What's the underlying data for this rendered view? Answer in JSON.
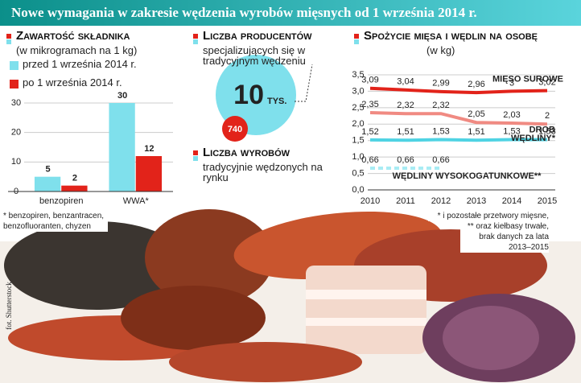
{
  "title": "Nowe wymagania w zakresie wędzenia wyrobów mięsnych od 1 września 2014 r.",
  "chart_data": [
    {
      "type": "bar",
      "title": "Zawartość składnika",
      "subtitle": "(w mikrogramach na 1 kg)",
      "categories": [
        "benzopiren",
        "WWA*"
      ],
      "series": [
        {
          "name": "przed 1 września 2014 r.",
          "color": "#7fe0ec",
          "values": [
            5,
            30
          ]
        },
        {
          "name": "po 1 września 2014 r.",
          "color": "#e2231a",
          "values": [
            2,
            12
          ]
        }
      ],
      "ylim": [
        0,
        30
      ],
      "yticks": [
        0,
        10,
        20,
        30
      ],
      "grid": true,
      "footnote": "* benzopiren, benzantracen, benzofluoranten, chyzen"
    },
    {
      "type": "line",
      "title": "Spożycie mięsa i wędlin na osobę",
      "subtitle": "(w kg)",
      "categories": [
        "2010",
        "2011",
        "2012",
        "2013",
        "2014",
        "2015"
      ],
      "series": [
        {
          "name": "MIĘSO SUROWE",
          "color": "#e2231a",
          "values": [
            3.09,
            3.04,
            2.99,
            2.96,
            3,
            3.02
          ],
          "value_labels": [
            "3,09",
            "3,04",
            "2,99",
            "2,96",
            "3",
            "3,02"
          ]
        },
        {
          "name": "DRÓB",
          "color": "#4fd3e3",
          "values": [
            1.52,
            1.51,
            1.53,
            1.51,
            1.53,
            1.53
          ],
          "value_labels": [
            "1,52",
            "1,51",
            "1,53",
            "1,51",
            "1,53",
            "1,53"
          ]
        },
        {
          "name": "WĘDLINY*",
          "color": "#f08a82",
          "values": [
            2.35,
            2.32,
            2.32,
            2.05,
            2.03,
            2
          ],
          "value_labels": [
            "2,35",
            "2,32",
            "2,32",
            "2,05",
            "2,03",
            "2"
          ]
        },
        {
          "name": "WĘDLINY WYSOKOGATUNKOWE**",
          "color": "#a8ecf4",
          "dashed": true,
          "values": [
            0.66,
            0.66,
            0.66,
            null,
            null,
            null
          ],
          "value_labels": [
            "0,66",
            "0,66",
            "0,66",
            null,
            null,
            null
          ]
        }
      ],
      "ylim": [
        0,
        3.5
      ],
      "yticks": [
        {
          "value": 0,
          "label": "0,0"
        },
        {
          "value": 0.5,
          "label": "0,5"
        },
        {
          "value": 1,
          "label": "1,0"
        },
        {
          "value": 1.5,
          "label": "1,5"
        },
        {
          "value": 2,
          "label": "2,0"
        },
        {
          "value": 2.5,
          "label": "2,5"
        },
        {
          "value": 3,
          "label": "3,0"
        },
        {
          "value": 3.5,
          "label": "3,5"
        }
      ],
      "grid": true,
      "footnotes": [
        "* i pozostałe przetwory mięsne,",
        "** oraz kiełbasy trwałe, brak danych za lata 2013–2015"
      ]
    }
  ],
  "producers": {
    "title": "Liczba producentów",
    "text": "specjalizujących się w tradycyjnym wędzeniu",
    "value": 10,
    "unit": "TYS."
  },
  "products": {
    "title": "Liczba wyrobów",
    "text": "tradycyjnie wędzonych na rynku",
    "value": 740
  },
  "credit": "fot. Shutterstock"
}
